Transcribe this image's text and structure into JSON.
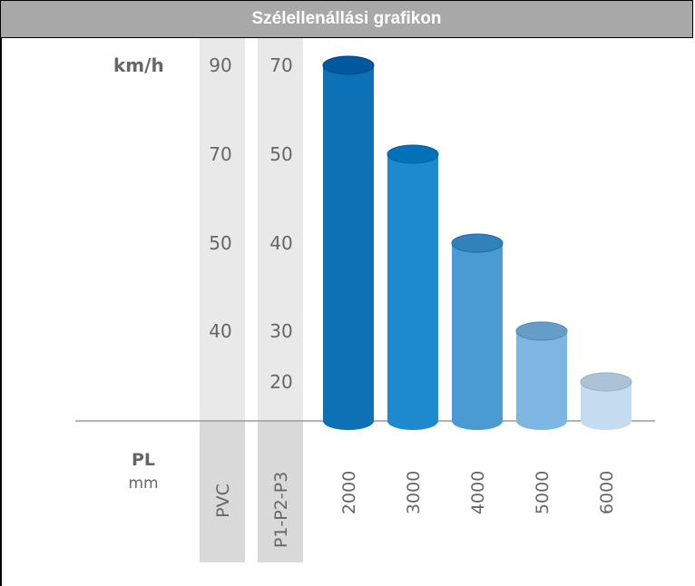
{
  "header": {
    "title": "Szélellenállási grafikon"
  },
  "chart_data": {
    "type": "bar",
    "title": "Szélellenállási grafikon",
    "y_unit": "km/h",
    "x_label_main": "PL",
    "x_label_unit": "mm",
    "categories": [
      "2000",
      "3000",
      "4000",
      "5000",
      "6000"
    ],
    "columns": [
      {
        "label": "PVC",
        "ticks": [
          "90",
          "70",
          "50",
          "40"
        ]
      },
      {
        "label": "P1-P2-P3",
        "ticks": [
          "70",
          "50",
          "40",
          "30",
          "20"
        ]
      }
    ],
    "series": [
      {
        "values_pvc_kmh": [
          90,
          70,
          50,
          40,
          null
        ],
        "values_p_kmh": [
          70,
          50,
          40,
          30,
          20
        ]
      }
    ],
    "colors": [
      "#0d72b5",
      "#1d8ad0",
      "#4a9ad4",
      "#7eb6e2",
      "#c3dcef"
    ],
    "grid": false
  }
}
